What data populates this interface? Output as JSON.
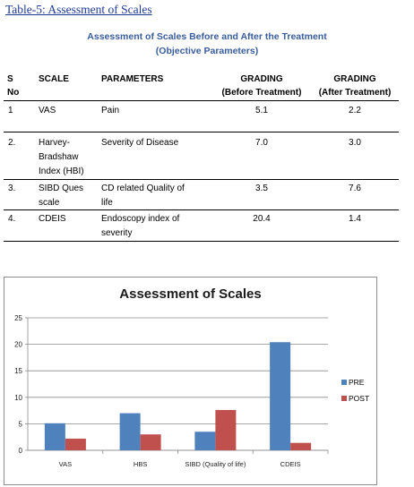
{
  "doc_title": "Table-5: Assessment of Scales",
  "table": {
    "caption_line1": "Assessment of Scales Before and After the Treatment",
    "caption_line2": "(Objective Parameters)",
    "headers": {
      "sno_line1": "S",
      "sno_line2": "No",
      "scale": "SCALE",
      "parameters": "PARAMETERS",
      "grading_before_line1": "GRADING",
      "grading_before_line2": "(Before Treatment)",
      "grading_after_line1": "GRADING",
      "grading_after_line2": "(After Treatment)"
    },
    "rows": [
      {
        "sno": "1",
        "scale": [
          "VAS"
        ],
        "parameters": [
          "Pain"
        ],
        "before": "5.1",
        "after": "2.2"
      },
      {
        "sno": "2.",
        "scale": [
          "Harvey-",
          "Bradshaw",
          "Index (HBI)"
        ],
        "parameters": [
          "Severity of Disease"
        ],
        "before": "7.0",
        "after": "3.0"
      },
      {
        "sno": "3.",
        "scale": [
          "SIBD Ques",
          "scale"
        ],
        "parameters": [
          "CD related Quality of",
          "life"
        ],
        "before": "3.5",
        "after": "7.6"
      },
      {
        "sno": "4.",
        "scale": [
          "CDEIS"
        ],
        "parameters": [
          "Endoscopy index of",
          "severity"
        ],
        "before": "20.4",
        "after": "1.4"
      }
    ]
  },
  "chart_data": {
    "type": "bar",
    "title": "Assessment of Scales",
    "categories": [
      "VAS",
      "HBS",
      "SIBD (Quality of life)",
      "CDEIS"
    ],
    "series": [
      {
        "name": "PRE",
        "values": [
          5.1,
          7.0,
          3.5,
          20.4
        ],
        "color": "#4f81bd"
      },
      {
        "name": "POST",
        "values": [
          2.2,
          3.0,
          7.6,
          1.4
        ],
        "color": "#c0504d"
      }
    ],
    "ylim": [
      0,
      25
    ],
    "yticks": [
      "0",
      "5",
      "10",
      "15",
      "20",
      "25"
    ],
    "grid": true,
    "legend_position": "right"
  }
}
